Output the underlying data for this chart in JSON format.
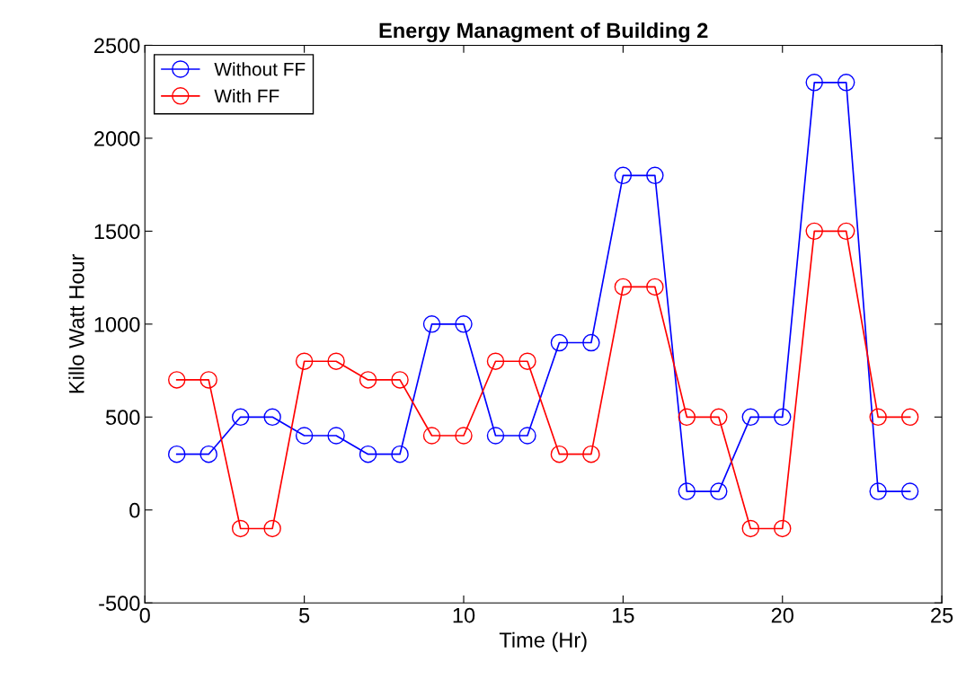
{
  "chart_data": {
    "type": "line",
    "title": "Energy Managment of Building 2",
    "xlabel": "Time (Hr)",
    "ylabel": "Killo Watt Hour",
    "x": [
      1,
      2,
      3,
      4,
      5,
      6,
      7,
      8,
      9,
      10,
      11,
      12,
      13,
      14,
      15,
      16,
      17,
      18,
      19,
      20,
      21,
      22,
      23,
      24
    ],
    "series": [
      {
        "name": "Without FF",
        "color": "#0000ff",
        "values": [
          300,
          300,
          500,
          500,
          400,
          400,
          300,
          300,
          1000,
          1000,
          400,
          400,
          900,
          900,
          1800,
          1800,
          100,
          100,
          500,
          500,
          2300,
          2300,
          100,
          100
        ]
      },
      {
        "name": "With FF",
        "color": "#ff0000",
        "values": [
          700,
          700,
          -100,
          -100,
          800,
          800,
          700,
          700,
          400,
          400,
          800,
          800,
          300,
          300,
          1200,
          1200,
          500,
          500,
          -100,
          -100,
          1500,
          1500,
          500,
          500
        ]
      }
    ],
    "xlim": [
      0,
      25
    ],
    "xticks": [
      0,
      5,
      10,
      15,
      20,
      25
    ],
    "ylim": [
      -500,
      2500
    ],
    "yticks": [
      -500,
      0,
      500,
      1000,
      1500,
      2000,
      2500
    ],
    "marker": "circle",
    "line_style": "solid",
    "legend": "top left",
    "grid": false
  }
}
